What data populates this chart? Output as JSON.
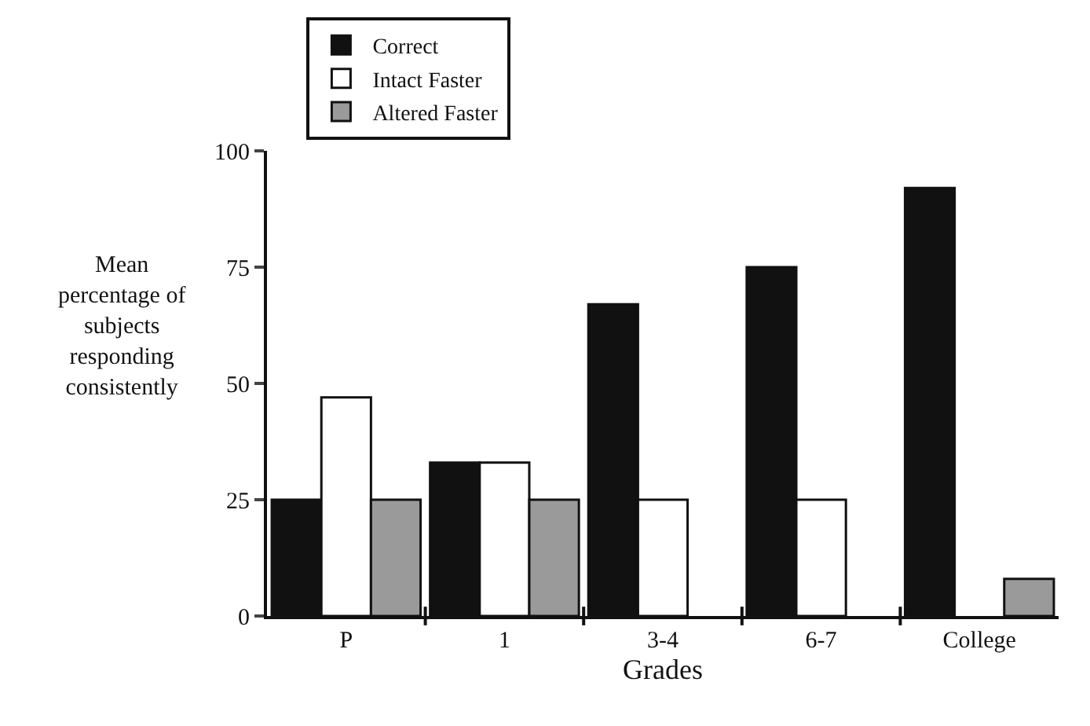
{
  "chart_data": {
    "type": "bar",
    "categories": [
      "P",
      "1",
      "3-4",
      "6-7",
      "College"
    ],
    "series": [
      {
        "name": "Correct",
        "color": "#111111",
        "values": [
          25,
          33,
          67,
          75,
          92
        ]
      },
      {
        "name": "Intact Faster",
        "color": "#ffffff",
        "values": [
          47,
          33,
          25,
          25,
          0
        ]
      },
      {
        "name": "Altered Faster",
        "color": "#9a9a9a",
        "values": [
          25,
          25,
          0,
          0,
          8
        ]
      }
    ],
    "xlabel": "Grades",
    "ylabel": "Mean percentage of subjects responding consistently",
    "ylim": [
      0,
      100
    ],
    "yticks": [
      0,
      25,
      50,
      75,
      100
    ],
    "legend": "top"
  }
}
